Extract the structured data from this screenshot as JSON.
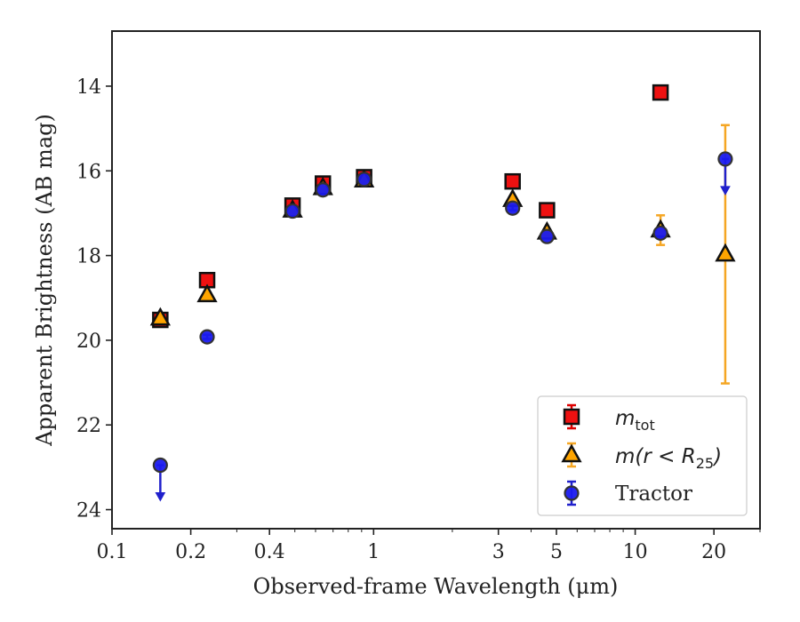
{
  "chart_data": {
    "type": "scatter",
    "title": "",
    "xlabel": "Observed-frame Wavelength (μm)",
    "ylabel": "Apparent Brightness (AB mag)",
    "xscale": "log",
    "xlim": [
      0.1,
      30
    ],
    "ylim": [
      24.45,
      12.7
    ],
    "y_inverted": true,
    "x_ticks": [
      {
        "value": 0.1,
        "label": "0.1"
      },
      {
        "value": 0.2,
        "label": "0.2"
      },
      {
        "value": 0.4,
        "label": "0.4"
      },
      {
        "value": 1,
        "label": "1"
      },
      {
        "value": 3,
        "label": "3"
      },
      {
        "value": 5,
        "label": "5"
      },
      {
        "value": 10,
        "label": "10"
      },
      {
        "value": 20,
        "label": "20"
      }
    ],
    "y_ticks": [
      {
        "value": 14,
        "label": "14"
      },
      {
        "value": 16,
        "label": "16"
      },
      {
        "value": 18,
        "label": "18"
      },
      {
        "value": 20,
        "label": "20"
      },
      {
        "value": 22,
        "label": "22"
      },
      {
        "value": 24,
        "label": "24"
      }
    ],
    "legend_position": "lower-right",
    "series": [
      {
        "name": "m_tot",
        "marker": "square",
        "color": "#ee1111",
        "errcolor": "#dd0000",
        "points": [
          {
            "x": 0.153,
            "y": 19.52,
            "err": 0.05
          },
          {
            "x": 0.231,
            "y": 18.58,
            "err": 0.05
          },
          {
            "x": 0.49,
            "y": 16.82,
            "err": 0.05
          },
          {
            "x": 0.64,
            "y": 16.3,
            "err": 0.05
          },
          {
            "x": 0.92,
            "y": 16.15,
            "err": 0.05
          },
          {
            "x": 3.4,
            "y": 16.25,
            "err": 0.05
          },
          {
            "x": 4.6,
            "y": 16.93,
            "err": 0.05
          },
          {
            "x": 12.5,
            "y": 14.15,
            "err": 0.05
          }
        ]
      },
      {
        "name": "m(r < R25)",
        "marker": "triangle",
        "color": "#ffa500",
        "errcolor": "#f5a623",
        "points": [
          {
            "x": 0.153,
            "y": 19.48,
            "err": 0.05
          },
          {
            "x": 0.231,
            "y": 18.93,
            "err": 0.05
          },
          {
            "x": 0.49,
            "y": 16.93,
            "err": 0.05
          },
          {
            "x": 0.64,
            "y": 16.4,
            "err": 0.05
          },
          {
            "x": 0.92,
            "y": 16.22,
            "err": 0.05
          },
          {
            "x": 3.4,
            "y": 16.68,
            "err": 0.05
          },
          {
            "x": 4.6,
            "y": 17.45,
            "err": 0.05
          },
          {
            "x": 12.5,
            "y": 17.4,
            "err": 0.35
          },
          {
            "x": 22.1,
            "y": 17.97,
            "err": 3.05
          }
        ]
      },
      {
        "name": "Tractor",
        "marker": "circle",
        "color": "#1a1aee",
        "errcolor": "#2020cc",
        "points": [
          {
            "x": 0.153,
            "y": 22.95,
            "upper_limit": true
          },
          {
            "x": 0.231,
            "y": 19.92,
            "err": 0.05
          },
          {
            "x": 0.49,
            "y": 16.95,
            "err": 0.05
          },
          {
            "x": 0.64,
            "y": 16.45,
            "err": 0.05
          },
          {
            "x": 0.92,
            "y": 16.2,
            "err": 0.05
          },
          {
            "x": 3.4,
            "y": 16.88,
            "err": 0.05
          },
          {
            "x": 4.6,
            "y": 17.55,
            "err": 0.05
          },
          {
            "x": 12.5,
            "y": 17.47,
            "err": 0.1
          },
          {
            "x": 22.1,
            "y": 15.72,
            "upper_limit": true
          }
        ]
      }
    ]
  },
  "legend": {
    "mtot_base": "m",
    "mtot_sub": "tot",
    "mr_prefix": "m(r < R",
    "mr_sub": "25",
    "mr_suffix": ")",
    "tractor": "Tractor"
  }
}
